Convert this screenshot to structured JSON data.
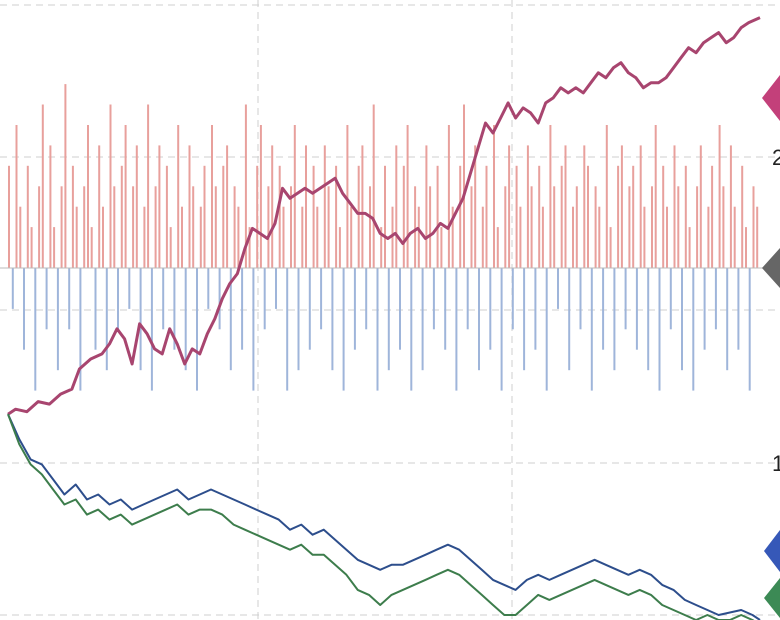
{
  "chart_data": {
    "type": "line",
    "title": "",
    "xlabel": "",
    "ylabel": "",
    "grid": true,
    "legend": "none",
    "x_range": [
      0,
      200
    ],
    "volume_range": [
      -1.15,
      1.15
    ],
    "price_range": [
      -4.0,
      3.65
    ],
    "colors": {
      "positive_bar": "#e8a09c",
      "negative_bar": "#9fb5da",
      "line_main": "#a8456f",
      "line_blue": "#2d4e8c",
      "line_green": "#3d7d4c",
      "marker_pink": "#c3407a",
      "marker_gray": "#666666",
      "marker_blue": "#3658b8",
      "marker_green": "#3c8a55"
    },
    "series": [
      {
        "key": "main",
        "points": [
          [
            0,
            0.0
          ],
          [
            2,
            0.1
          ],
          [
            5,
            0.05
          ],
          [
            8,
            0.25
          ],
          [
            11,
            0.2
          ],
          [
            14,
            0.4
          ],
          [
            17,
            0.5
          ],
          [
            19,
            0.9
          ],
          [
            22,
            1.1
          ],
          [
            25,
            1.2
          ],
          [
            27,
            1.4
          ],
          [
            29,
            1.7
          ],
          [
            31,
            1.5
          ],
          [
            33,
            1.0
          ],
          [
            35,
            1.8
          ],
          [
            37,
            1.6
          ],
          [
            39,
            1.3
          ],
          [
            41,
            1.2
          ],
          [
            43,
            1.7
          ],
          [
            45,
            1.4
          ],
          [
            47,
            1.0
          ],
          [
            49,
            1.3
          ],
          [
            51,
            1.2
          ],
          [
            53,
            1.6
          ],
          [
            55,
            1.9
          ],
          [
            57,
            2.3
          ],
          [
            59,
            2.6
          ],
          [
            61,
            2.8
          ],
          [
            63,
            3.3
          ],
          [
            65,
            3.7
          ],
          [
            67,
            3.6
          ],
          [
            69,
            3.5
          ],
          [
            71,
            3.8
          ],
          [
            73,
            4.5
          ],
          [
            75,
            4.3
          ],
          [
            77,
            4.4
          ],
          [
            79,
            4.5
          ],
          [
            81,
            4.4
          ],
          [
            83,
            4.5
          ],
          [
            85,
            4.6
          ],
          [
            87,
            4.7
          ],
          [
            89,
            4.4
          ],
          [
            91,
            4.2
          ],
          [
            93,
            4.0
          ],
          [
            95,
            4.0
          ],
          [
            97,
            3.9
          ],
          [
            99,
            3.6
          ],
          [
            101,
            3.5
          ],
          [
            103,
            3.6
          ],
          [
            105,
            3.4
          ],
          [
            107,
            3.6
          ],
          [
            109,
            3.7
          ],
          [
            111,
            3.5
          ],
          [
            113,
            3.6
          ],
          [
            115,
            3.8
          ],
          [
            117,
            3.7
          ],
          [
            119,
            4.0
          ],
          [
            121,
            4.3
          ],
          [
            123,
            4.8
          ],
          [
            125,
            5.3
          ],
          [
            127,
            5.8
          ],
          [
            129,
            5.6
          ],
          [
            131,
            5.9
          ],
          [
            133,
            6.2
          ],
          [
            135,
            5.9
          ],
          [
            137,
            6.1
          ],
          [
            139,
            6.0
          ],
          [
            141,
            5.8
          ],
          [
            143,
            6.2
          ],
          [
            145,
            6.3
          ],
          [
            147,
            6.5
          ],
          [
            149,
            6.4
          ],
          [
            151,
            6.5
          ],
          [
            153,
            6.4
          ],
          [
            155,
            6.6
          ],
          [
            157,
            6.8
          ],
          [
            159,
            6.7
          ],
          [
            161,
            6.9
          ],
          [
            163,
            7.0
          ],
          [
            165,
            6.8
          ],
          [
            167,
            6.7
          ],
          [
            169,
            6.5
          ],
          [
            171,
            6.6
          ],
          [
            173,
            6.6
          ],
          [
            175,
            6.7
          ],
          [
            177,
            6.9
          ],
          [
            179,
            7.1
          ],
          [
            181,
            7.3
          ],
          [
            183,
            7.2
          ],
          [
            185,
            7.4
          ],
          [
            187,
            7.5
          ],
          [
            189,
            7.6
          ],
          [
            191,
            7.4
          ],
          [
            193,
            7.5
          ],
          [
            195,
            7.7
          ],
          [
            197,
            7.8
          ],
          [
            200,
            7.9
          ]
        ]
      },
      {
        "key": "blue",
        "points": [
          [
            0,
            0.0
          ],
          [
            3,
            -0.5
          ],
          [
            6,
            -0.9
          ],
          [
            9,
            -1.0
          ],
          [
            12,
            -1.3
          ],
          [
            15,
            -1.6
          ],
          [
            18,
            -1.4
          ],
          [
            21,
            -1.7
          ],
          [
            24,
            -1.6
          ],
          [
            27,
            -1.8
          ],
          [
            30,
            -1.7
          ],
          [
            33,
            -1.9
          ],
          [
            36,
            -1.8
          ],
          [
            39,
            -1.7
          ],
          [
            42,
            -1.6
          ],
          [
            45,
            -1.5
          ],
          [
            48,
            -1.7
          ],
          [
            51,
            -1.6
          ],
          [
            54,
            -1.5
          ],
          [
            57,
            -1.6
          ],
          [
            60,
            -1.7
          ],
          [
            63,
            -1.8
          ],
          [
            66,
            -1.9
          ],
          [
            69,
            -2.0
          ],
          [
            72,
            -2.1
          ],
          [
            75,
            -2.3
          ],
          [
            78,
            -2.2
          ],
          [
            81,
            -2.4
          ],
          [
            84,
            -2.3
          ],
          [
            87,
            -2.5
          ],
          [
            90,
            -2.7
          ],
          [
            93,
            -2.9
          ],
          [
            96,
            -3.0
          ],
          [
            99,
            -3.1
          ],
          [
            102,
            -3.0
          ],
          [
            105,
            -3.0
          ],
          [
            108,
            -2.9
          ],
          [
            111,
            -2.8
          ],
          [
            114,
            -2.7
          ],
          [
            117,
            -2.6
          ],
          [
            120,
            -2.7
          ],
          [
            123,
            -2.9
          ],
          [
            126,
            -3.1
          ],
          [
            129,
            -3.3
          ],
          [
            132,
            -3.4
          ],
          [
            135,
            -3.5
          ],
          [
            138,
            -3.3
          ],
          [
            141,
            -3.2
          ],
          [
            144,
            -3.3
          ],
          [
            147,
            -3.2
          ],
          [
            150,
            -3.1
          ],
          [
            153,
            -3.0
          ],
          [
            156,
            -2.9
          ],
          [
            159,
            -3.0
          ],
          [
            162,
            -3.1
          ],
          [
            165,
            -3.2
          ],
          [
            168,
            -3.1
          ],
          [
            171,
            -3.2
          ],
          [
            174,
            -3.4
          ],
          [
            177,
            -3.5
          ],
          [
            180,
            -3.7
          ],
          [
            183,
            -3.8
          ],
          [
            186,
            -3.9
          ],
          [
            189,
            -4.0
          ],
          [
            192,
            -3.95
          ],
          [
            195,
            -3.9
          ],
          [
            198,
            -4.0
          ],
          [
            200,
            -4.1
          ]
        ]
      },
      {
        "key": "green",
        "points": [
          [
            0,
            0.0
          ],
          [
            3,
            -0.6
          ],
          [
            6,
            -1.0
          ],
          [
            9,
            -1.2
          ],
          [
            12,
            -1.5
          ],
          [
            15,
            -1.8
          ],
          [
            18,
            -1.7
          ],
          [
            21,
            -2.0
          ],
          [
            24,
            -1.9
          ],
          [
            27,
            -2.1
          ],
          [
            30,
            -2.0
          ],
          [
            33,
            -2.2
          ],
          [
            36,
            -2.1
          ],
          [
            39,
            -2.0
          ],
          [
            42,
            -1.9
          ],
          [
            45,
            -1.8
          ],
          [
            48,
            -2.0
          ],
          [
            51,
            -1.9
          ],
          [
            54,
            -1.9
          ],
          [
            57,
            -2.0
          ],
          [
            60,
            -2.2
          ],
          [
            63,
            -2.3
          ],
          [
            66,
            -2.4
          ],
          [
            69,
            -2.5
          ],
          [
            72,
            -2.6
          ],
          [
            75,
            -2.7
          ],
          [
            78,
            -2.6
          ],
          [
            81,
            -2.8
          ],
          [
            84,
            -2.8
          ],
          [
            87,
            -3.0
          ],
          [
            90,
            -3.2
          ],
          [
            93,
            -3.5
          ],
          [
            96,
            -3.6
          ],
          [
            99,
            -3.8
          ],
          [
            102,
            -3.6
          ],
          [
            105,
            -3.5
          ],
          [
            108,
            -3.4
          ],
          [
            111,
            -3.3
          ],
          [
            114,
            -3.2
          ],
          [
            117,
            -3.1
          ],
          [
            120,
            -3.2
          ],
          [
            123,
            -3.4
          ],
          [
            126,
            -3.6
          ],
          [
            129,
            -3.8
          ],
          [
            132,
            -4.0
          ],
          [
            135,
            -4.0
          ],
          [
            138,
            -3.8
          ],
          [
            141,
            -3.6
          ],
          [
            144,
            -3.7
          ],
          [
            147,
            -3.6
          ],
          [
            150,
            -3.5
          ],
          [
            153,
            -3.4
          ],
          [
            156,
            -3.3
          ],
          [
            159,
            -3.4
          ],
          [
            162,
            -3.5
          ],
          [
            165,
            -3.6
          ],
          [
            168,
            -3.5
          ],
          [
            171,
            -3.6
          ],
          [
            174,
            -3.8
          ],
          [
            177,
            -3.9
          ],
          [
            180,
            -4.0
          ],
          [
            183,
            -4.1
          ],
          [
            186,
            -4.0
          ],
          [
            189,
            -4.1
          ],
          [
            192,
            -4.1
          ],
          [
            195,
            -4.0
          ],
          [
            198,
            -4.1
          ],
          [
            200,
            -4.2
          ]
        ]
      }
    ],
    "volume": [
      0.5,
      -0.2,
      0.7,
      0.3,
      -0.4,
      0.5,
      0.2,
      -0.6,
      0.4,
      0.8,
      -0.3,
      0.6,
      0.2,
      -0.5,
      0.4,
      0.9,
      -0.3,
      0.5,
      0.3,
      -0.6,
      0.4,
      0.7,
      0.2,
      -0.4,
      0.6,
      0.3,
      -0.5,
      0.8,
      0.4,
      -0.3,
      0.5,
      0.7,
      -0.2,
      0.4,
      0.6,
      -0.5,
      0.3,
      0.8,
      -0.6,
      0.4,
      0.6,
      -0.3,
      0.5,
      0.2,
      -0.4,
      0.7,
      0.3,
      -0.5,
      0.6,
      0.4,
      -0.6,
      0.3,
      0.5,
      -0.2,
      0.7,
      0.4,
      -0.3,
      0.5,
      0.6,
      -0.5,
      0.4,
      0.3,
      -0.4,
      0.8,
      0.2,
      -0.6,
      0.5,
      0.7,
      -0.3,
      0.4,
      0.6,
      -0.2,
      0.5,
      0.3,
      -0.6,
      0.4,
      0.7,
      -0.5,
      0.3,
      0.6,
      -0.4,
      0.5,
      0.3,
      -0.3,
      0.6,
      0.4,
      -0.5,
      0.5,
      0.2,
      -0.6,
      0.7,
      0.3,
      -0.4,
      0.5,
      0.6,
      -0.3,
      0.4,
      0.8,
      -0.6,
      0.2,
      0.5,
      -0.5,
      0.3,
      0.6,
      -0.4,
      0.5,
      0.7,
      -0.6,
      0.4,
      0.3,
      -0.5,
      0.6,
      0.4,
      -0.3,
      0.5,
      0.2,
      -0.4,
      0.7,
      0.3,
      -0.6,
      0.5,
      0.8,
      -0.3,
      0.4,
      0.6,
      -0.5,
      0.3,
      0.5,
      -0.4,
      0.7,
      0.2,
      -0.6,
      0.4,
      0.6,
      -0.3,
      0.5,
      0.3,
      -0.5,
      0.6,
      0.4,
      -0.4,
      0.5,
      0.3,
      -0.6,
      0.7,
      0.4,
      -0.2,
      0.5,
      0.6,
      -0.5,
      0.3,
      0.4,
      -0.3,
      0.6,
      0.5,
      -0.6,
      0.4,
      0.3,
      -0.4,
      0.7,
      0.2,
      -0.5,
      0.5,
      0.6,
      -0.3,
      0.4,
      0.5,
      -0.4,
      0.6,
      0.3,
      -0.5,
      0.4,
      0.7,
      -0.6,
      0.5,
      0.3,
      -0.3,
      0.6,
      0.4,
      -0.5,
      0.5,
      0.2,
      -0.6,
      0.4,
      0.6,
      -0.4,
      0.3,
      0.5,
      -0.3,
      0.7,
      0.4,
      -0.5,
      0.6,
      0.3,
      -0.4,
      0.5,
      0.2,
      -0.6,
      0.4,
      0.3
    ],
    "tick_labels": [
      "2",
      "1"
    ]
  }
}
